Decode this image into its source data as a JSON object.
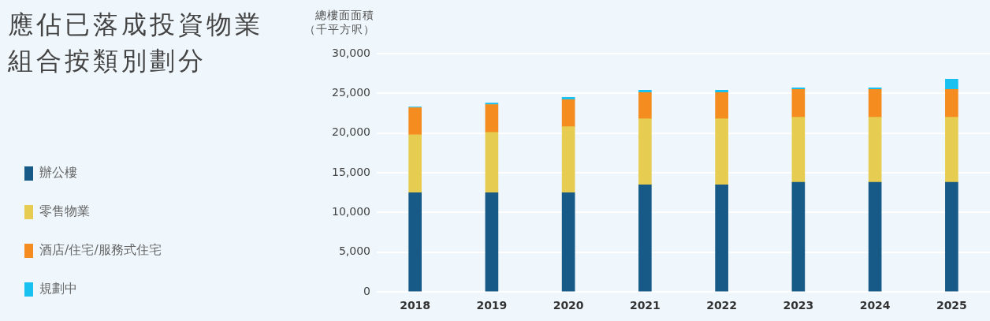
{
  "chart_data": {
    "type": "bar",
    "title": "應佔已落成投資物業組合按類別劃分",
    "ylabel": "總樓面面積（千平方呎）",
    "categories": [
      "2018",
      "2019",
      "2020",
      "2021",
      "2022",
      "2023",
      "2024",
      "2025"
    ],
    "stacked": true,
    "ylim": [
      0,
      30000
    ],
    "yticks": [
      0,
      {
        "value": 5000,
        "label": "5,000"
      },
      {
        "value": 10000,
        "label": "10,000"
      },
      {
        "value": 15000,
        "label": "15,000"
      },
      {
        "value": 20000,
        "label": "20,000"
      },
      {
        "value": 25000,
        "label": "25,000"
      },
      {
        "value": 30000,
        "label": "30,000"
      }
    ],
    "grid": "y",
    "legend": "left",
    "series": [
      {
        "name": "辦公樓",
        "color": "#185a87",
        "values": [
          12500,
          12500,
          12500,
          13500,
          13500,
          13800,
          13800,
          13800
        ]
      },
      {
        "name": "零售物業",
        "color": "#e6cd52",
        "values": [
          7300,
          7600,
          8300,
          8300,
          8300,
          8200,
          8200,
          8200
        ]
      },
      {
        "name": "酒店/住宅/服務式住宅",
        "color": "#f58c1f",
        "values": [
          3400,
          3500,
          3400,
          3300,
          3300,
          3500,
          3500,
          3500
        ]
      },
      {
        "name": "規劃中",
        "color": "#18c1f0",
        "values": [
          100,
          200,
          300,
          300,
          300,
          200,
          200,
          1300
        ]
      }
    ]
  }
}
